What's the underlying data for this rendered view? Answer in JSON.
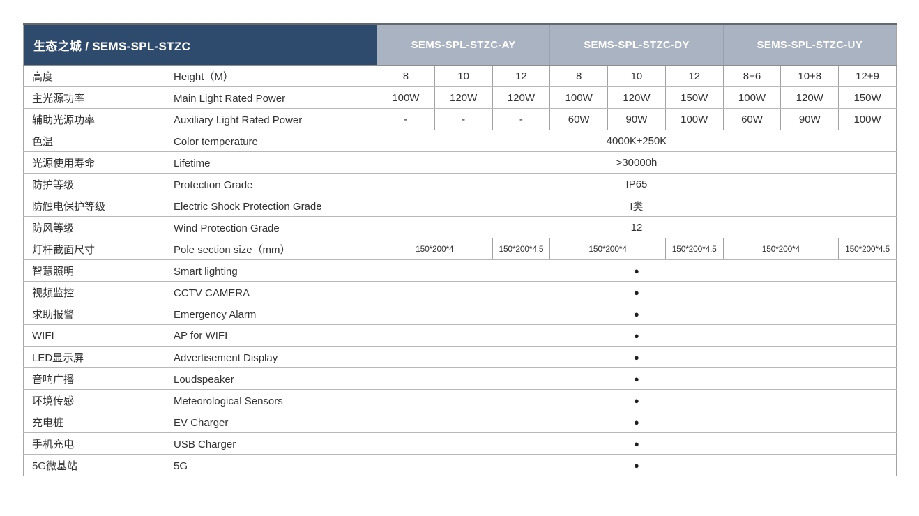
{
  "table": {
    "title": "生态之城 / SEMS-SPL-STZC",
    "groups": [
      "SEMS-SPL-STZC-AY",
      "SEMS-SPL-STZC-DY",
      "SEMS-SPL-STZC-UY"
    ],
    "dot_symbol": "●",
    "colors": {
      "title_bg": "#2e4a6d",
      "group_header_bg": "#a9b3c2",
      "header_text": "#ffffff",
      "body_text": "#333333",
      "row_line": "#b8b8b8",
      "column_line": "#a2a2a2",
      "top_border": "#64676c"
    },
    "rows": [
      {
        "zh": "高度",
        "en": "Height（M）",
        "type": "cols",
        "values": [
          "8",
          "10",
          "12",
          "8",
          "10",
          "12",
          "8+6",
          "10+8",
          "12+9"
        ]
      },
      {
        "zh": "主光源功率",
        "en": "Main Light Rated Power",
        "type": "cols",
        "values": [
          "100W",
          "120W",
          "120W",
          "100W",
          "120W",
          "150W",
          "100W",
          "120W",
          "150W"
        ]
      },
      {
        "zh": "辅助光源功率",
        "en": "Auxiliary Light Rated Power",
        "type": "cols",
        "values": [
          "-",
          "-",
          "-",
          "60W",
          "90W",
          "100W",
          "60W",
          "90W",
          "100W"
        ]
      },
      {
        "zh": "色温",
        "en": "Color temperature",
        "type": "span",
        "value": "4000K±250K"
      },
      {
        "zh": "光源使用寿命",
        "en": "Lifetime",
        "type": "span",
        "value": ">30000h"
      },
      {
        "zh": "防护等级",
        "en": "Protection Grade",
        "type": "span",
        "value": "IP65"
      },
      {
        "zh": "防触电保护等级",
        "en": "Electric Shock Protection Grade",
        "type": "span",
        "value": "I类"
      },
      {
        "zh": "防风等级",
        "en": "Wind Protection Grade",
        "type": "span",
        "value": "12"
      },
      {
        "zh": "灯杆截面尺寸",
        "en": "Pole section size（mm）",
        "type": "pole",
        "values": [
          "150*200*4",
          "150*200*4.5",
          "150*200*4",
          "150*200*4.5",
          "150*200*4",
          "150*200*4.5"
        ]
      },
      {
        "zh": "智慧照明",
        "en": "Smart lighting",
        "type": "dot",
        "value": "●"
      },
      {
        "zh": "视频监控",
        "en": "CCTV CAMERA",
        "type": "dot",
        "value": "●"
      },
      {
        "zh": "求助报警",
        "en": "Emergency Alarm",
        "type": "dot",
        "value": "●"
      },
      {
        "zh": "WIFI",
        "en": "AP for WIFI",
        "type": "dot",
        "value": "●"
      },
      {
        "zh": "LED显示屏",
        "en": "Advertisement Display",
        "type": "dot",
        "value": "●"
      },
      {
        "zh": "音响广播",
        "en": "Loudspeaker",
        "type": "dot",
        "value": "●"
      },
      {
        "zh": "环境传感",
        "en": "Meteorological Sensors",
        "type": "dot",
        "value": "●"
      },
      {
        "zh": "充电桩",
        "en": "EV Charger",
        "type": "dot",
        "value": "●"
      },
      {
        "zh": "手机充电",
        "en": "USB Charger",
        "type": "dot",
        "value": "●"
      },
      {
        "zh": "5G微基站",
        "en": "5G",
        "type": "dot",
        "value": "●"
      }
    ]
  }
}
